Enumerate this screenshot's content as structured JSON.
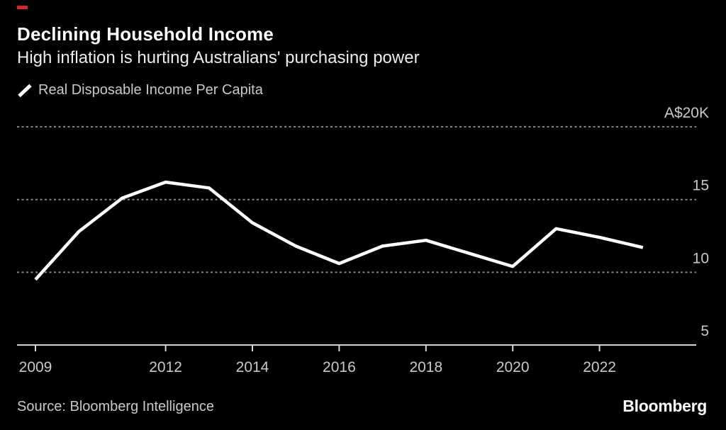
{
  "header": {
    "title": "Declining Household Income",
    "subtitle": "High inflation is hurting Australians' purchasing power"
  },
  "legend": {
    "label": "Real Disposable Income Per Capita",
    "marker": "diagonal-line-swatch",
    "marker_color": "#ffffff"
  },
  "footer": {
    "source": "Source: Bloomberg Intelligence",
    "logo": "Bloomberg"
  },
  "colors": {
    "background": "#000000",
    "accent_red": "#d9232e",
    "series_line": "#ffffff",
    "gridline": "#858585",
    "axis": "#d6d6d6",
    "tick_label": "#c9c9c9"
  },
  "chart_data": {
    "type": "line",
    "title": "Declining Household Income",
    "subtitle": "High inflation is hurting Australians' purchasing power",
    "unit": "A$ thousands",
    "grid": "horizontal-dotted",
    "legend_position": "top-left",
    "xlim": [
      2008.6,
      2024.2
    ],
    "ylim": [
      5,
      21
    ],
    "x_ticks": [
      {
        "value": 2009,
        "label": "2009"
      },
      {
        "value": 2012,
        "label": "2012"
      },
      {
        "value": 2014,
        "label": "2014"
      },
      {
        "value": 2016,
        "label": "2016"
      },
      {
        "value": 2018,
        "label": "2018"
      },
      {
        "value": 2020,
        "label": "2020"
      },
      {
        "value": 2022,
        "label": "2022"
      }
    ],
    "y_ticks": [
      {
        "value": 20,
        "label": "A$20K"
      },
      {
        "value": 15,
        "label": "15"
      },
      {
        "value": 10,
        "label": "10"
      },
      {
        "value": 5,
        "label": "5"
      }
    ],
    "series": [
      {
        "name": "Real Disposable Income Per Capita",
        "color": "#ffffff",
        "x": [
          2009,
          2010,
          2011,
          2012,
          2013,
          2014,
          2015,
          2016,
          2017,
          2018,
          2019,
          2020,
          2021,
          2022,
          2023
        ],
        "values": [
          9.5,
          12.8,
          15.1,
          16.2,
          15.8,
          13.4,
          11.8,
          10.6,
          11.8,
          12.2,
          11.3,
          10.4,
          13.0,
          12.4,
          11.7
        ]
      }
    ]
  }
}
